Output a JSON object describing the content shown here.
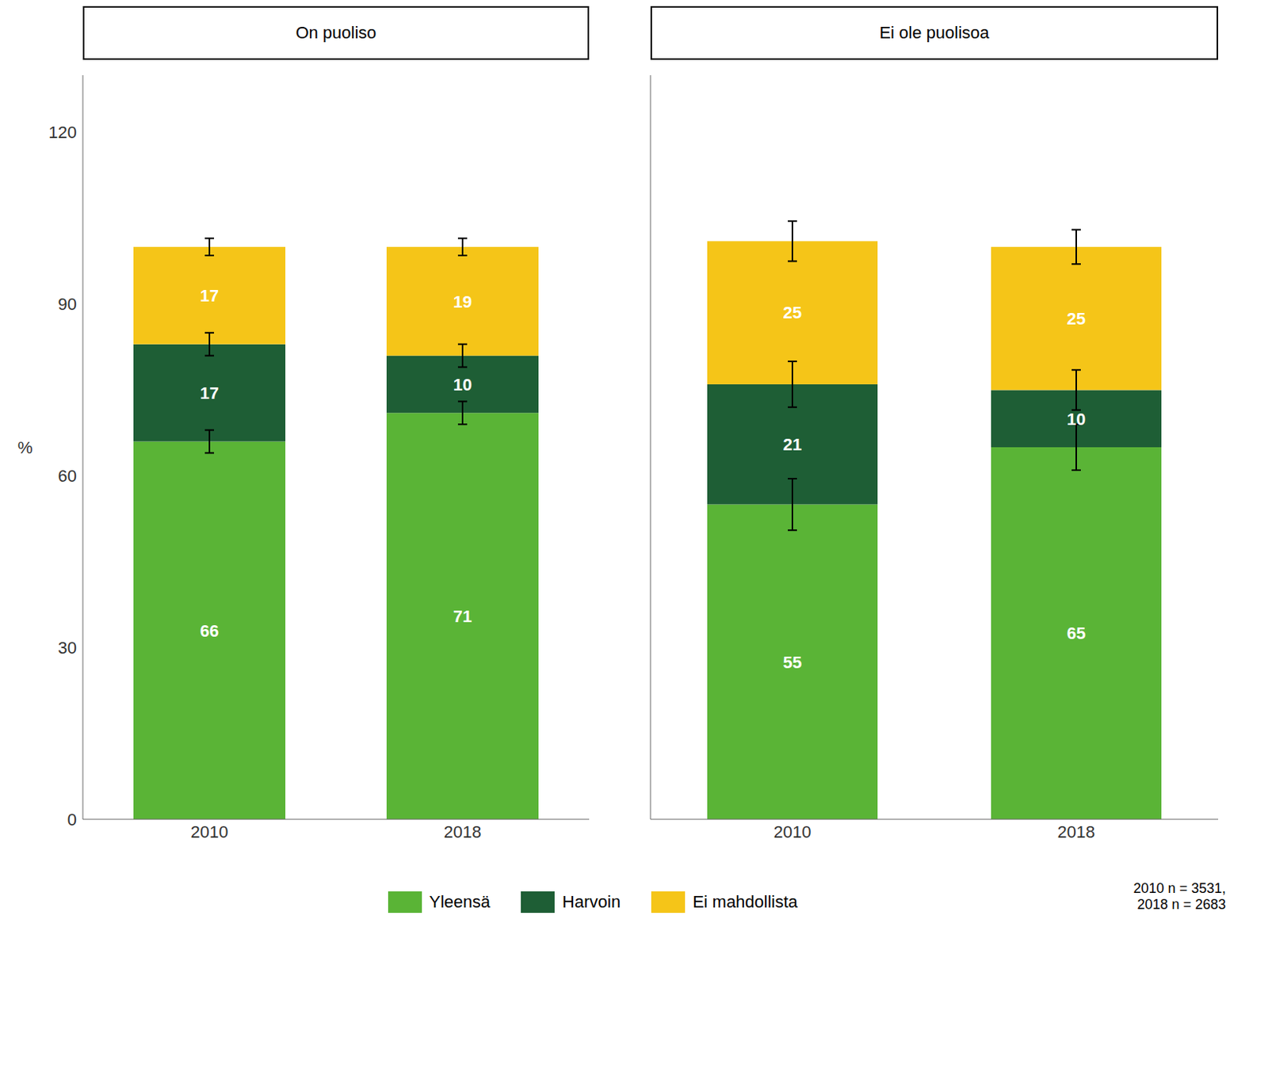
{
  "chart_data": [
    {
      "type": "bar",
      "stacked": true,
      "title": "On puoliso",
      "ylabel": "%",
      "categories": [
        "2010",
        "2018"
      ],
      "series": [
        {
          "name": "Yleensä",
          "color": "#5ab436",
          "values": [
            66,
            71
          ],
          "error_bars": [
            2.0,
            2.0
          ]
        },
        {
          "name": "Harvoin",
          "color": "#1e5e35",
          "values": [
            17,
            10
          ],
          "error_bars": [
            2.0,
            2.0
          ]
        },
        {
          "name": "Ei mahdollista",
          "color": "#f5c518",
          "values": [
            17,
            19
          ],
          "error_bars": [
            1.5,
            1.5
          ]
        }
      ],
      "ylim": [
        0,
        130
      ],
      "yticks": [
        0,
        30,
        60,
        90,
        120
      ],
      "grid": false,
      "data_labels": true,
      "legend": "bottom",
      "annotations": [
        "2010 n = 3531,\n2018 n = 2683"
      ]
    },
    {
      "type": "bar",
      "stacked": true,
      "title": "Ei ole puolisoa",
      "categories": [
        "2010",
        "2018"
      ],
      "series": [
        {
          "name": "Yleensä",
          "color": "#5ab436",
          "values": [
            55,
            65
          ],
          "error_bars": [
            4.5,
            4.0
          ]
        },
        {
          "name": "Harvoin",
          "color": "#1e5e35",
          "values": [
            21,
            10
          ],
          "error_bars": [
            4.0,
            3.5
          ]
        },
        {
          "name": "Ei mahdollista",
          "color": "#f5c518",
          "values": [
            25,
            25
          ],
          "error_bars": [
            3.5,
            3.0
          ]
        }
      ],
      "ylim": [
        0,
        130
      ],
      "yticks": [
        0,
        30,
        60,
        90,
        120
      ],
      "grid": false,
      "data_labels": true,
      "tick_labels": "x"
    }
  ]
}
